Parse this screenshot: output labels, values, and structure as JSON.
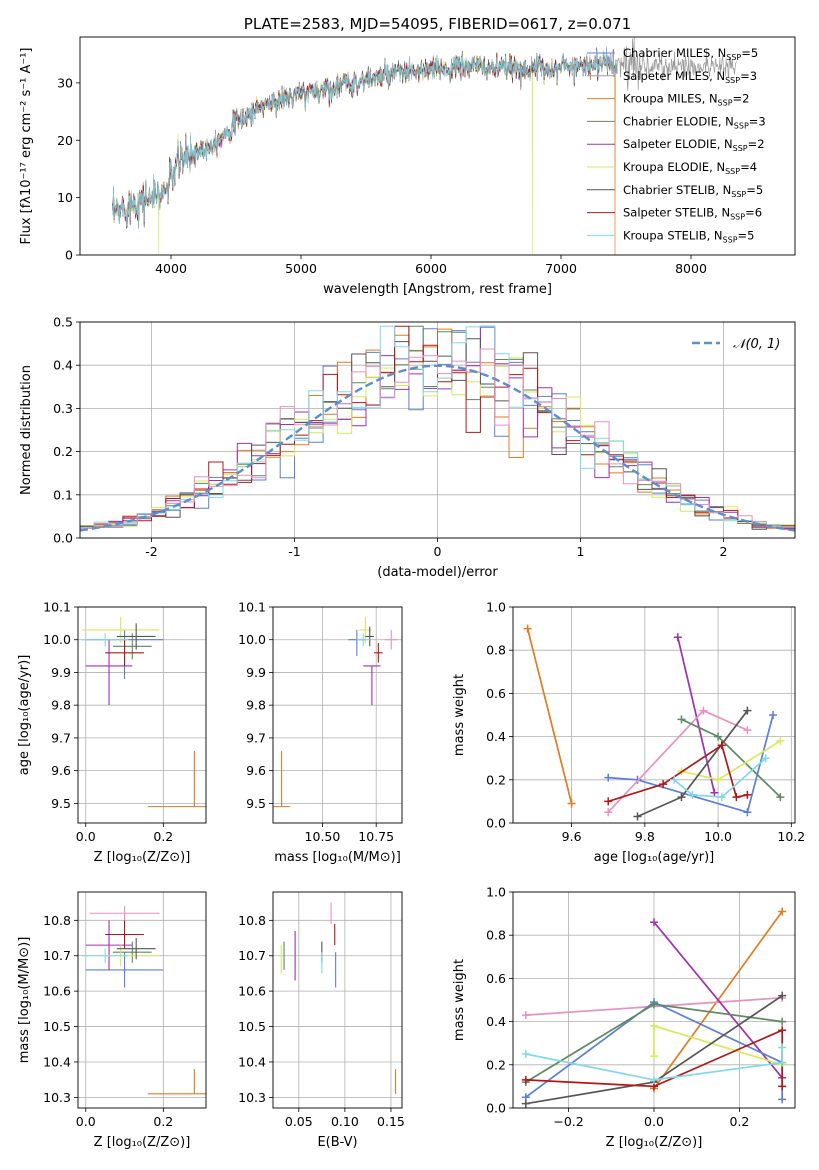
{
  "colors": {
    "Chabrier MILES": "#5b7fd6",
    "Salpeter MILES": "#9a9a9a",
    "Kroupa MILES": "#e07b20",
    "Chabrier ELODIE": "#5f8a5f",
    "Salpeter ELODIE": "#a030b0",
    "Kroupa ELODIE": "#d6ea5a",
    "Chabrier STELIB": "#555555",
    "Salpeter STELIB": "#b01818",
    "Kroupa STELIB": "#80d8e8",
    "extra_pink": "#e890c0",
    "normal": "#5a8fd0"
  },
  "chart_data": [
    {
      "id": "spectrum",
      "type": "line",
      "title": "PLATE=2583, MJD=54095, FIBERID=0617, z=0.071",
      "xlabel": "wavelength [Angstrom, rest frame]",
      "ylabel": "Flux [fλ10⁻¹⁷ erg cm⁻² s⁻¹ A⁻¹]",
      "xlim": [
        3300,
        8800
      ],
      "ylim": [
        0,
        38
      ],
      "xticks": [
        4000,
        5000,
        6000,
        7000,
        8000
      ],
      "yticks": [
        0,
        10,
        20,
        30
      ],
      "grid": false,
      "legend": "upper-right",
      "continuum": {
        "x": [
          3550,
          3700,
          3850,
          3950,
          4050,
          4150,
          4300,
          4500,
          4700,
          4900,
          5100,
          5300,
          5500,
          5700,
          5900,
          6100,
          6300,
          6500,
          6700,
          6900,
          7100,
          7300,
          7500,
          7700,
          7900,
          8100,
          8300
        ],
        "y": [
          7,
          9,
          10,
          11,
          16,
          17.5,
          19,
          23,
          26,
          27.5,
          28.5,
          29.5,
          30.5,
          31.5,
          32,
          32.5,
          33,
          32.5,
          32.5,
          32.5,
          33,
          33.5,
          33,
          33,
          33,
          33,
          33
        ]
      },
      "dips": [
        {
          "x": 3905,
          "y": 0
        },
        {
          "x": 6780,
          "y": 0
        },
        {
          "x": 7415,
          "y": 0
        }
      ],
      "series": [
        {
          "key": "Chabrier MILES",
          "label": "Chabrier MILES, N",
          "sub": "SSP",
          "n": "=5"
        },
        {
          "key": "Salpeter MILES",
          "label": "Salpeter MILES, N",
          "sub": "SSP",
          "n": "=3"
        },
        {
          "key": "Kroupa MILES",
          "label": "Kroupa MILES, N",
          "sub": "SSP",
          "n": "=2"
        },
        {
          "key": "Chabrier ELODIE",
          "label": "Chabrier ELODIE, N",
          "sub": "SSP",
          "n": "=3"
        },
        {
          "key": "Salpeter ELODIE",
          "label": "Salpeter ELODIE, N",
          "sub": "SSP",
          "n": "=2"
        },
        {
          "key": "Kroupa ELODIE",
          "label": "Kroupa ELODIE, N",
          "sub": "SSP",
          "n": "=4"
        },
        {
          "key": "Chabrier STELIB",
          "label": "Chabrier STELIB, N",
          "sub": "SSP",
          "n": "=5"
        },
        {
          "key": "Salpeter STELIB",
          "label": "Salpeter STELIB, N",
          "sub": "SSP",
          "n": "=6"
        },
        {
          "key": "Kroupa STELIB",
          "label": "Kroupa STELIB, N",
          "sub": "SSP",
          "n": "=5"
        }
      ]
    },
    {
      "id": "residuals",
      "type": "bar",
      "xlabel": "(data-model)/error",
      "ylabel": "Normed distribution",
      "xlim": [
        -2.5,
        2.5
      ],
      "ylim": [
        0,
        0.5
      ],
      "xticks": [
        -2,
        -1,
        0,
        1,
        2
      ],
      "yticks": [
        0.0,
        0.1,
        0.2,
        0.3,
        0.4,
        0.5
      ],
      "grid": true,
      "legend": "upper-right",
      "normal_label": "𝒩(0, 1)",
      "bin_width": 0.1,
      "bin_start": -2.5,
      "series_keys": [
        "Chabrier MILES",
        "Kroupa MILES",
        "Chabrier ELODIE",
        "Salpeter ELODIE",
        "Kroupa ELODIE",
        "Chabrier STELIB",
        "Salpeter STELIB",
        "Kroupa STELIB",
        "extra_pink"
      ]
    },
    {
      "id": "age_vs_Z",
      "type": "scatter",
      "xlabel": "Z [log₁₀(Z/Z⊙)]",
      "ylabel": "age  [log₁₀(age/yr)]",
      "xlim": [
        -0.02,
        0.31
      ],
      "ylim": [
        9.44,
        10.1
      ],
      "xticks": [
        0.0,
        0.2
      ],
      "yticks": [
        9.5,
        9.6,
        9.7,
        9.8,
        9.9,
        10.0,
        10.1
      ],
      "points": [
        {
          "key": "Chabrier MILES",
          "x": 0.1,
          "y": 10.0,
          "xerr": 0.1,
          "yerr": [
            0.12,
            0.03
          ]
        },
        {
          "key": "Kroupa MILES",
          "x": 0.28,
          "y": 9.49,
          "xerr": 0.12,
          "yerr": [
            0.0,
            0.17
          ]
        },
        {
          "key": "Chabrier ELODIE",
          "x": 0.12,
          "y": 9.98,
          "xerr": 0.05,
          "yerr": 0.04
        },
        {
          "key": "Salpeter ELODIE",
          "x": 0.06,
          "y": 9.92,
          "xerr": 0.06,
          "yerr": [
            0.12,
            0.08
          ]
        },
        {
          "key": "Kroupa ELODIE",
          "x": 0.09,
          "y": 10.03,
          "xerr": 0.1,
          "yerr": 0.04
        },
        {
          "key": "Chabrier STELIB",
          "x": 0.13,
          "y": 10.01,
          "xerr": 0.05,
          "yerr": 0.04
        },
        {
          "key": "Salpeter STELIB",
          "x": 0.1,
          "y": 9.96,
          "xerr": 0.05,
          "yerr": 0.04
        },
        {
          "key": "Kroupa STELIB",
          "x": 0.05,
          "y": 10.0,
          "xerr": 0.06,
          "yerr": 0.02
        }
      ]
    },
    {
      "id": "age_vs_mass",
      "type": "scatter",
      "xlabel": "mass [log₁₀(M/M⊙)]",
      "xlim": [
        10.27,
        10.87
      ],
      "ylim": [
        9.44,
        10.1
      ],
      "xticks": [
        10.5,
        10.75
      ],
      "xticklabels": [
        "10.50",
        "10.75"
      ],
      "yticks": [
        9.5,
        9.6,
        9.7,
        9.8,
        9.9,
        10.0,
        10.1
      ],
      "points": [
        {
          "key": "Chabrier MILES",
          "x": 10.66,
          "y": 10.0,
          "xerr": 0.04,
          "yerr": [
            0.05,
            0.03
          ]
        },
        {
          "key": "Kroupa MILES",
          "x": 10.31,
          "y": 9.49,
          "xerr": 0.04,
          "yerr": [
            0.0,
            0.17
          ]
        },
        {
          "key": "Salpeter ELODIE",
          "x": 10.73,
          "y": 9.92,
          "xerr": 0.04,
          "yerr": [
            0.12,
            0.0
          ]
        },
        {
          "key": "Kroupa ELODIE",
          "x": 10.7,
          "y": 10.03,
          "xerr": 0.03,
          "yerr": 0.04
        },
        {
          "key": "Chabrier STELIB",
          "x": 10.72,
          "y": 10.01,
          "xerr": 0.02,
          "yerr": 0.03
        },
        {
          "key": "Salpeter STELIB",
          "x": 10.76,
          "y": 9.96,
          "xerr": 0.02,
          "yerr": 0.03
        },
        {
          "key": "Kroupa STELIB",
          "x": 10.69,
          "y": 10.0,
          "xerr": 0.03,
          "yerr": 0.02
        },
        {
          "key": "extra_pink",
          "x": 10.82,
          "y": 10.0,
          "xerr": 0.03,
          "yerr": 0.03
        }
      ]
    },
    {
      "id": "weight_vs_age",
      "type": "line",
      "xlabel": "age  [log₁₀(age/yr)]",
      "ylabel": "mass weight",
      "xlim": [
        9.44,
        10.21
      ],
      "ylim": [
        0,
        1
      ],
      "xticks": [
        9.6,
        9.8,
        10.0,
        10.2
      ],
      "yticks": [
        0.0,
        0.2,
        0.4,
        0.6,
        0.8,
        1.0
      ],
      "grid": true,
      "series": [
        {
          "key": "Kroupa MILES",
          "x": [
            9.48,
            9.6
          ],
          "y": [
            0.9,
            0.09
          ]
        },
        {
          "key": "Chabrier MILES",
          "x": [
            9.7,
            9.78,
            10.08,
            10.15
          ],
          "y": [
            0.21,
            0.2,
            0.05,
            0.5
          ]
        },
        {
          "key": "Salpeter ELODIE",
          "x": [
            9.89,
            9.99
          ],
          "y": [
            0.86,
            0.14
          ]
        },
        {
          "key": "extra_pink",
          "x": [
            9.7,
            9.96,
            10.08
          ],
          "y": [
            0.05,
            0.52,
            0.43
          ]
        },
        {
          "key": "Chabrier ELODIE",
          "x": [
            9.9,
            10.0,
            10.17
          ],
          "y": [
            0.48,
            0.4,
            0.12
          ]
        },
        {
          "key": "Kroupa ELODIE",
          "x": [
            9.9,
            10.0,
            10.17
          ],
          "y": [
            0.24,
            0.2,
            0.38
          ]
        },
        {
          "key": "Chabrier STELIB",
          "x": [
            9.78,
            9.9,
            10.08
          ],
          "y": [
            0.03,
            0.12,
            0.52
          ]
        },
        {
          "key": "Salpeter STELIB",
          "x": [
            9.7,
            9.85,
            10.01,
            10.05,
            10.08
          ],
          "y": [
            0.1,
            0.18,
            0.36,
            0.12,
            0.13
          ]
        },
        {
          "key": "Kroupa STELIB",
          "x": [
            9.88,
            9.93,
            10.01,
            10.13
          ],
          "y": [
            0.2,
            0.13,
            0.12,
            0.3
          ]
        }
      ]
    },
    {
      "id": "mass_vs_Z",
      "type": "scatter",
      "xlabel": "Z [log₁₀(Z/Z⊙)]",
      "ylabel": "mass [log₁₀(M/M⊙)]",
      "xlim": [
        -0.02,
        0.31
      ],
      "ylim": [
        10.27,
        10.88
      ],
      "xticks": [
        0.0,
        0.2
      ],
      "yticks": [
        10.3,
        10.4,
        10.5,
        10.6,
        10.7,
        10.8
      ],
      "points": [
        {
          "key": "Chabrier MILES",
          "x": 0.1,
          "y": 10.66,
          "xerr": 0.1,
          "yerr": 0.05
        },
        {
          "key": "Kroupa MILES",
          "x": 0.28,
          "y": 10.31,
          "xerr": 0.12,
          "yerr": [
            0.0,
            0.07
          ]
        },
        {
          "key": "Chabrier ELODIE",
          "x": 0.12,
          "y": 10.71,
          "xerr": 0.05,
          "yerr": 0.03
        },
        {
          "key": "Salpeter ELODIE",
          "x": 0.06,
          "y": 10.73,
          "xerr": 0.06,
          "yerr": 0.07
        },
        {
          "key": "Kroupa ELODIE",
          "x": 0.09,
          "y": 10.7,
          "xerr": 0.1,
          "yerr": 0.03
        },
        {
          "key": "Chabrier STELIB",
          "x": 0.13,
          "y": 10.72,
          "xerr": 0.05,
          "yerr": 0.03
        },
        {
          "key": "Salpeter STELIB",
          "x": 0.1,
          "y": 10.76,
          "xerr": 0.05,
          "yerr": 0.04
        },
        {
          "key": "Kroupa STELIB",
          "x": 0.05,
          "y": 10.7,
          "xerr": 0.06,
          "yerr": 0.02
        },
        {
          "key": "extra_pink",
          "x": 0.1,
          "y": 10.82,
          "xerr": 0.09,
          "yerr": 0.02
        }
      ]
    },
    {
      "id": "mass_vs_ebv",
      "type": "scatter",
      "xlabel": "E(B-V)",
      "xlim": [
        0.022,
        0.162
      ],
      "ylim": [
        10.27,
        10.88
      ],
      "xticks": [
        0.05,
        0.1,
        0.15
      ],
      "xticklabels": [
        "0.05",
        "0.10",
        "0.15"
      ],
      "yticks": [
        10.3,
        10.4,
        10.5,
        10.6,
        10.7,
        10.8
      ],
      "points": [
        {
          "key": "Chabrier MILES",
          "x": 0.09,
          "y": 10.66,
          "yerr": 0.05
        },
        {
          "key": "Kroupa MILES",
          "x": 0.155,
          "y": 10.31,
          "yerr": [
            0.0,
            0.07
          ]
        },
        {
          "key": "Chabrier ELODIE",
          "x": 0.034,
          "y": 10.7,
          "yerr": 0.04
        },
        {
          "key": "Salpeter ELODIE",
          "x": 0.046,
          "y": 10.7,
          "yerr": 0.07
        },
        {
          "key": "Kroupa ELODIE",
          "x": 0.031,
          "y": 10.69,
          "yerr": 0.04
        },
        {
          "key": "Chabrier STELIB",
          "x": 0.075,
          "y": 10.71,
          "yerr": 0.03
        },
        {
          "key": "Salpeter STELIB",
          "x": 0.089,
          "y": 10.76,
          "yerr": 0.03
        },
        {
          "key": "Kroupa STELIB",
          "x": 0.075,
          "y": 10.68,
          "yerr": 0.03
        },
        {
          "key": "extra_pink",
          "x": 0.085,
          "y": 10.82,
          "yerr": 0.03
        }
      ]
    },
    {
      "id": "weight_vs_Z",
      "type": "line",
      "xlabel": "Z [log₁₀(Z/Z⊙)]",
      "ylabel": "mass weight",
      "xlim": [
        -0.33,
        0.33
      ],
      "ylim": [
        0,
        1
      ],
      "xticks": [
        -0.2,
        0.0,
        0.2
      ],
      "xticklabels": [
        "−0.2",
        "0.0",
        "0.2"
      ],
      "yticks": [
        0.0,
        0.2,
        0.4,
        0.6,
        0.8,
        1.0
      ],
      "grid": true,
      "series": [
        {
          "key": "Kroupa MILES",
          "x": [
            0.0,
            0.3
          ],
          "y": [
            0.09,
            0.91
          ]
        },
        {
          "key": "extra_pink",
          "x": [
            -0.3,
            0.3
          ],
          "y": [
            0.43,
            0.51
          ]
        },
        {
          "key": "Salpeter ELODIE",
          "x": [
            0.0,
            0.3
          ],
          "y": [
            0.86,
            0.14
          ]
        },
        {
          "key": "Chabrier MILES",
          "x": [
            -0.3,
            0.0,
            0.3,
            0.3
          ],
          "y": [
            0.05,
            0.49,
            0.21,
            0.04
          ]
        },
        {
          "key": "Chabrier ELODIE",
          "x": [
            -0.3,
            0.0,
            0.3
          ],
          "y": [
            0.12,
            0.48,
            0.4
          ]
        },
        {
          "key": "Kroupa ELODIE",
          "x": [
            0.0,
            0.0,
            0.3
          ],
          "y": [
            0.24,
            0.38,
            0.2
          ]
        },
        {
          "key": "Chabrier STELIB",
          "x": [
            -0.3,
            0.0,
            0.3
          ],
          "y": [
            0.02,
            0.12,
            0.52
          ]
        },
        {
          "key": "Salpeter STELIB",
          "x": [
            -0.3,
            0.0,
            0.3,
            0.3
          ],
          "y": [
            0.13,
            0.1,
            0.36,
            0.1
          ]
        },
        {
          "key": "Kroupa STELIB",
          "x": [
            -0.3,
            0.0,
            0.3,
            0.3
          ],
          "y": [
            0.25,
            0.13,
            0.21,
            0.28
          ]
        }
      ]
    }
  ]
}
